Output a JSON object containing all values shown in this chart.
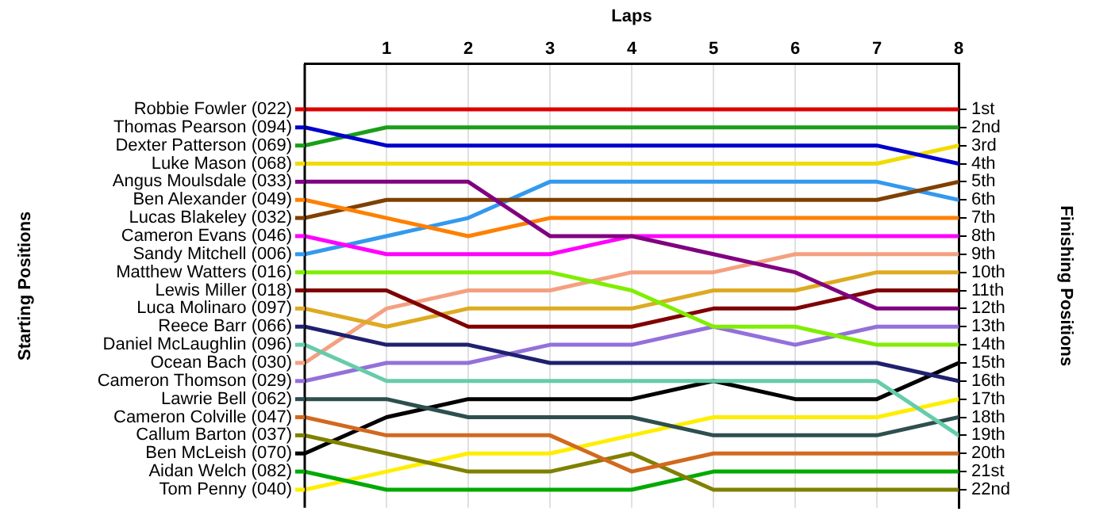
{
  "chart_data": {
    "type": "line",
    "xlabel": "Laps",
    "ylabel": "Finishing Positions",
    "annotations": [
      "Starting Positions"
    ],
    "x": [
      0,
      1,
      2,
      3,
      4,
      5,
      6,
      7,
      8
    ],
    "xlim": [
      0,
      8
    ],
    "xticks": [
      1,
      2,
      3,
      4,
      5,
      6,
      7,
      8
    ],
    "ylim": [
      23,
      -1.5
    ],
    "yticks": [
      {
        "value": 1,
        "label": "1st"
      },
      {
        "value": 2,
        "label": "2nd"
      },
      {
        "value": 3,
        "label": "3rd"
      },
      {
        "value": 4,
        "label": "4th"
      },
      {
        "value": 5,
        "label": "5th"
      },
      {
        "value": 6,
        "label": "6th"
      },
      {
        "value": 7,
        "label": "7th"
      },
      {
        "value": 8,
        "label": "8th"
      },
      {
        "value": 9,
        "label": "9th"
      },
      {
        "value": 10,
        "label": "10th"
      },
      {
        "value": 11,
        "label": "11th"
      },
      {
        "value": 12,
        "label": "12th"
      },
      {
        "value": 13,
        "label": "13th"
      },
      {
        "value": 14,
        "label": "14th"
      },
      {
        "value": 15,
        "label": "15th"
      },
      {
        "value": 16,
        "label": "16th"
      },
      {
        "value": 17,
        "label": "17th"
      },
      {
        "value": 18,
        "label": "18th"
      },
      {
        "value": 19,
        "label": "19th"
      },
      {
        "value": 20,
        "label": "20th"
      },
      {
        "value": 21,
        "label": "21st"
      },
      {
        "value": 22,
        "label": "22nd"
      }
    ],
    "grid": "x",
    "legend": "left",
    "marker": "none",
    "line_style": "solid",
    "series": [
      {
        "name": "Robbie Fowler (022)",
        "color": "#dd0000",
        "values": [
          1,
          1,
          1,
          1,
          1,
          1,
          1,
          1,
          1
        ]
      },
      {
        "name": "Thomas Pearson (094)",
        "color": "#0000cc",
        "values": [
          2,
          3,
          3,
          3,
          3,
          3,
          3,
          3,
          4
        ]
      },
      {
        "name": "Dexter Patterson (069)",
        "color": "#1a9e1a",
        "values": [
          3,
          2,
          2,
          2,
          2,
          2,
          2,
          2,
          2
        ]
      },
      {
        "name": "Luke Mason (068)",
        "color": "#f0dc00",
        "values": [
          4,
          4,
          4,
          4,
          4,
          4,
          4,
          4,
          3
        ]
      },
      {
        "name": "Angus Moulsdale (033)",
        "color": "#800080",
        "values": [
          5,
          5,
          5,
          8,
          8,
          9,
          10,
          12,
          12
        ]
      },
      {
        "name": "Ben Alexander (049)",
        "color": "#ff8000",
        "values": [
          6,
          7,
          8,
          7,
          7,
          7,
          7,
          7,
          7
        ]
      },
      {
        "name": "Lucas Blakeley (032)",
        "color": "#804000",
        "values": [
          7,
          6,
          6,
          6,
          6,
          6,
          6,
          6,
          5
        ]
      },
      {
        "name": "Cameron Evans (046)",
        "color": "#ff00ff",
        "values": [
          8,
          9,
          9,
          9,
          8,
          8,
          8,
          8,
          8
        ]
      },
      {
        "name": "Sandy Mitchell (006)",
        "color": "#3399ee",
        "values": [
          9,
          8,
          7,
          5,
          5,
          5,
          5,
          5,
          6
        ]
      },
      {
        "name": "Matthew Watters (016)",
        "color": "#80ee00",
        "values": [
          10,
          10,
          10,
          10,
          11,
          13,
          13,
          14,
          14
        ]
      },
      {
        "name": "Lewis Miller (018)",
        "color": "#800000",
        "values": [
          11,
          11,
          13,
          13,
          13,
          12,
          12,
          11,
          11
        ]
      },
      {
        "name": "Luca Molinaro (097)",
        "color": "#ddaa22",
        "values": [
          12,
          13,
          12,
          12,
          12,
          11,
          11,
          10,
          10
        ]
      },
      {
        "name": "Reece Barr (066)",
        "color": "#202070",
        "values": [
          13,
          14,
          14,
          15,
          15,
          15,
          15,
          15,
          16
        ]
      },
      {
        "name": "Daniel McLaughlin (096)",
        "color": "#66ccaa",
        "values": [
          14,
          16,
          16,
          16,
          16,
          16,
          16,
          16,
          19
        ]
      },
      {
        "name": "Ocean Bach (030)",
        "color": "#f4a080",
        "values": [
          15,
          12,
          11,
          11,
          10,
          10,
          9,
          9,
          9
        ]
      },
      {
        "name": "Cameron Thomson (029)",
        "color": "#9370db",
        "values": [
          16,
          15,
          15,
          14,
          14,
          13,
          14,
          13,
          13
        ]
      },
      {
        "name": "Lawrie Bell (062)",
        "color": "#2f4f4f",
        "values": [
          17,
          17,
          18,
          18,
          18,
          19,
          19,
          19,
          18
        ]
      },
      {
        "name": "Cameron Colville (047)",
        "color": "#d2691e",
        "values": [
          18,
          19,
          19,
          19,
          21,
          20,
          20,
          20,
          20
        ]
      },
      {
        "name": "Callum Barton (037)",
        "color": "#808000",
        "values": [
          19,
          20,
          21,
          21,
          20,
          22,
          22,
          22,
          22
        ]
      },
      {
        "name": "Ben McLeish (070)",
        "color": "#000000",
        "values": [
          20,
          18,
          17,
          17,
          17,
          16,
          17,
          17,
          15
        ]
      },
      {
        "name": "Aidan Welch (082)",
        "color": "#00aa00",
        "values": [
          21,
          22,
          22,
          22,
          22,
          21,
          21,
          21,
          21
        ]
      },
      {
        "name": "Tom Penny (040)",
        "color": "#ffee00",
        "values": [
          22,
          21,
          20,
          20,
          19,
          18,
          18,
          18,
          17
        ]
      }
    ]
  }
}
